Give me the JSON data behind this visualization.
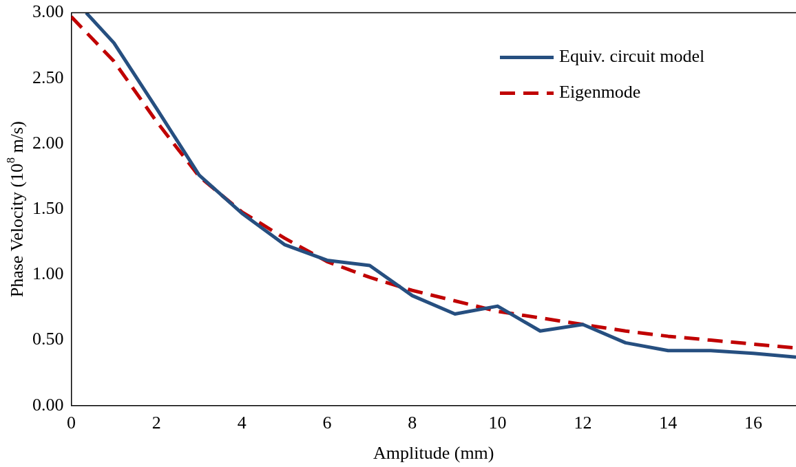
{
  "chart_data": {
    "type": "line",
    "xlabel": "Amplitude (mm)",
    "ylabel": "Phase Velocity (10$^{8}$ m/s)",
    "xlim": [
      0,
      17
    ],
    "xticks": [
      0,
      2,
      4,
      6,
      8,
      10,
      12,
      14,
      16
    ],
    "ylim": [
      0,
      3
    ],
    "yticks": [
      {
        "value": 0,
        "label": "0.00"
      },
      {
        "value": 0.5,
        "label": "0.50"
      },
      {
        "value": 1,
        "label": "1.00"
      },
      {
        "value": 1.5,
        "label": "1.50"
      },
      {
        "value": 2,
        "label": "2.00"
      },
      {
        "value": 2.5,
        "label": "2.50"
      },
      {
        "value": 3,
        "label": "3.00"
      }
    ],
    "grid": false,
    "legend": "top right",
    "marker": "none",
    "series": [
      {
        "name": "Equiv. circuit model",
        "color": "#264f80",
        "line_style": "solid",
        "x": [
          0.35,
          1,
          2,
          3,
          4,
          5,
          6,
          7,
          8,
          9,
          10,
          11,
          12,
          13,
          14,
          15,
          16,
          17
        ],
        "values": [
          3.0,
          2.77,
          2.27,
          1.76,
          1.47,
          1.23,
          1.11,
          1.07,
          0.84,
          0.7,
          0.76,
          0.57,
          0.62,
          0.48,
          0.42,
          0.42,
          0.4,
          0.37
        ]
      },
      {
        "name": "Eigenmode",
        "color": "#c00000",
        "line_style": "dashed",
        "x": [
          0,
          1,
          2,
          3,
          4,
          5,
          6,
          7,
          8,
          9,
          10,
          11,
          12,
          13,
          14,
          15,
          16,
          17
        ],
        "values": [
          2.97,
          2.63,
          2.17,
          1.75,
          1.48,
          1.28,
          1.1,
          0.98,
          0.88,
          0.8,
          0.72,
          0.67,
          0.62,
          0.57,
          0.53,
          0.5,
          0.47,
          0.44
        ]
      }
    ]
  }
}
